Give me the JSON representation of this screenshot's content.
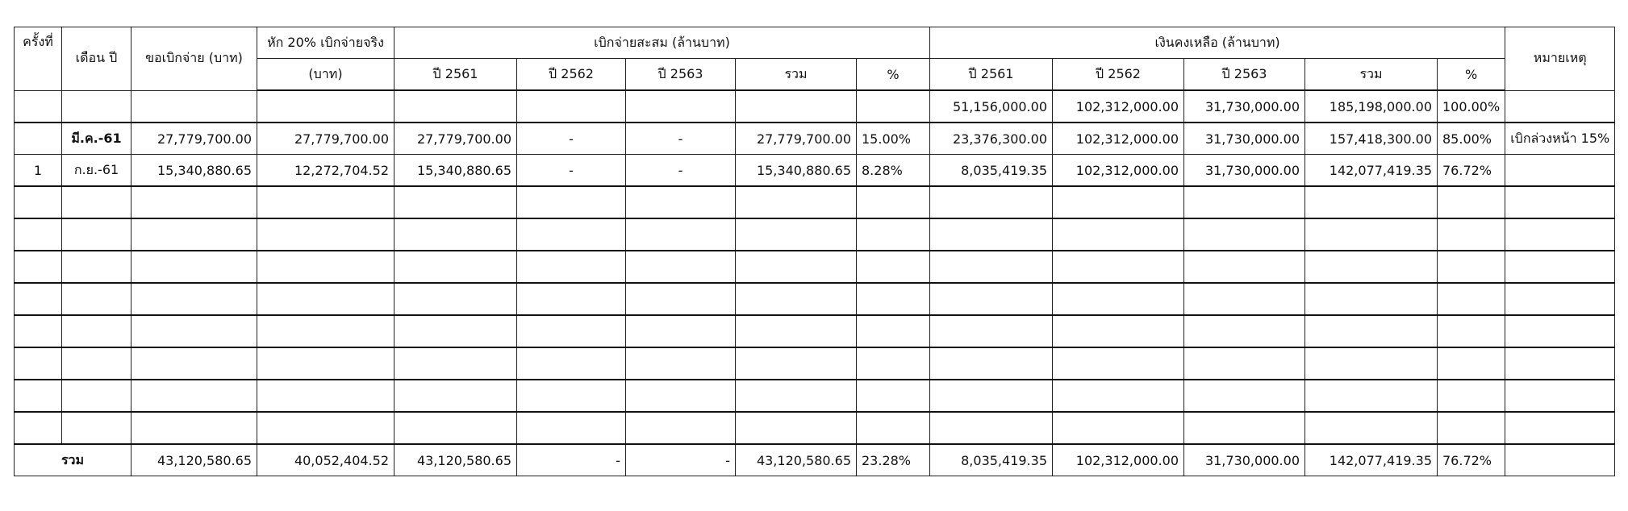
{
  "headers": {
    "col_no": "ครั้งที่",
    "col_month": "เดือน ปี",
    "col_request": "ขอเบิกจ่าย (บาท)",
    "col_deduct_line1": "หัก 20% เบิกจ่ายจริง",
    "col_deduct_line2": "(บาท)",
    "group_cumulative": "เบิกจ่ายสะสม (ล้านบาท)",
    "group_balance": "เงินคงเหลือ (ล้านบาท)",
    "col_remark": "หมายเหตุ",
    "sub": [
      "ปี 2561",
      "ปี 2562",
      "ปี 2563",
      "รวม",
      "%"
    ]
  },
  "rows": [
    {
      "no": "",
      "month": "",
      "request": "",
      "deduct": "",
      "c2561": "",
      "c2562": "",
      "c2563": "",
      "ctotal": "",
      "cpct": "",
      "b2561": "51,156,000.00",
      "b2562": "102,312,000.00",
      "b2563": "31,730,000.00",
      "btotal": "185,198,000.00",
      "bpct": "100.00%",
      "remark": ""
    },
    {
      "no": "",
      "month": "มี.ค.-61",
      "request": "27,779,700.00",
      "deduct": "27,779,700.00",
      "c2561": "27,779,700.00",
      "c2562": "-",
      "c2563": "-",
      "ctotal": "27,779,700.00",
      "cpct": "15.00%",
      "b2561": "23,376,300.00",
      "b2562": "102,312,000.00",
      "b2563": "31,730,000.00",
      "btotal": "157,418,300.00",
      "bpct": "85.00%",
      "remark": "เบิกล่วงหน้า 15%"
    },
    {
      "no": "1",
      "month": "ก.ย.-61",
      "request": "15,340,880.65",
      "deduct": "12,272,704.52",
      "c2561": "15,340,880.65",
      "c2562": "-",
      "c2563": "-",
      "ctotal": "15,340,880.65",
      "cpct": "8.28%",
      "b2561": "8,035,419.35",
      "b2562": "102,312,000.00",
      "b2563": "31,730,000.00",
      "btotal": "142,077,419.35",
      "bpct": "76.72%",
      "remark": ""
    }
  ],
  "total": {
    "label": "รวม",
    "request": "43,120,580.65",
    "deduct": "40,052,404.52",
    "c2561": "43,120,580.65",
    "c2562": "-",
    "c2563": "-",
    "ctotal": "43,120,580.65",
    "cpct": "23.28%",
    "b2561": "8,035,419.35",
    "b2562": "102,312,000.00",
    "b2563": "31,730,000.00",
    "btotal": "142,077,419.35",
    "bpct": "76.72%",
    "remark": ""
  }
}
